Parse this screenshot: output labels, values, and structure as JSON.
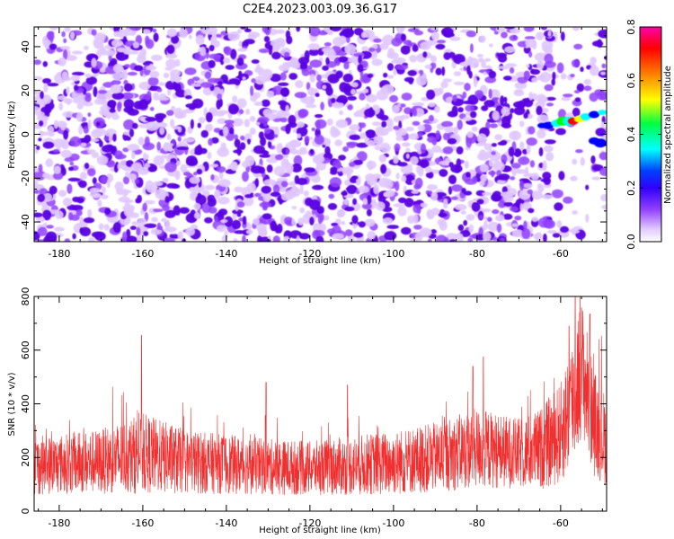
{
  "title": "C2E4.2023.003.09.36.G17",
  "colors": {
    "snr_line": "#f03030",
    "axis": "#000000",
    "colormap": [
      "#ffffff",
      "#e0c8ff",
      "#9040ff",
      "#5a00e0",
      "#0000ff",
      "#00ffff",
      "#00ff00",
      "#ffff00",
      "#ff8000",
      "#ff0000",
      "#ff00aa"
    ]
  },
  "chart_data": [
    {
      "type": "heatmap",
      "xlabel": "Height of straight line (km)",
      "ylabel": "Frequency (Hz)",
      "xlim": [
        -186,
        -49
      ],
      "ylim": [
        -49,
        49
      ],
      "xticks": [
        -180,
        -160,
        -140,
        -120,
        -100,
        -80,
        -60
      ],
      "yticks": [
        -40,
        -20,
        0,
        20,
        40
      ],
      "features": [
        {
          "x_range": [
            -186,
            -62
          ],
          "description_values": "scattered amplitude blobs",
          "typical_amplitude": [
            0.02,
            0.1
          ]
        },
        {
          "x_range": [
            -62,
            -49
          ],
          "y_center": 6,
          "peak_x": -57,
          "peak_amplitude": 0.78
        }
      ],
      "colorbar": {
        "label": "Normalized spectral amplitude",
        "range": [
          0,
          0.8
        ],
        "ticks": [
          0.0,
          0.2,
          0.4,
          0.6,
          0.8
        ]
      }
    },
    {
      "type": "line",
      "xlabel": "Height of straight line (km)",
      "ylabel": "SNR (10 * v/v)",
      "xlim": [
        -186,
        -49
      ],
      "ylim": [
        0,
        800
      ],
      "xticks": [
        -180,
        -160,
        -140,
        -120,
        -100,
        -80,
        -60
      ],
      "yticks": [
        0,
        200,
        400,
        600,
        800
      ],
      "envelope": {
        "x": [
          -186,
          -180,
          -170,
          -160,
          -150,
          -140,
          -130,
          -120,
          -110,
          -100,
          -90,
          -80,
          -70,
          -65,
          -60,
          -57,
          -55,
          -52,
          -49
        ],
        "mean": [
          170,
          175,
          185,
          215,
          185,
          175,
          165,
          160,
          170,
          180,
          200,
          235,
          215,
          230,
          290,
          420,
          540,
          330,
          260
        ],
        "spread": [
          110,
          110,
          120,
          150,
          120,
          110,
          105,
          100,
          110,
          120,
          130,
          150,
          130,
          150,
          190,
          250,
          260,
          200,
          170
        ]
      },
      "peaks": [
        {
          "x": -160.3,
          "y": 655
        },
        {
          "x": -130.5,
          "y": 480
        },
        {
          "x": -111,
          "y": 470
        },
        {
          "x": -78.5,
          "y": 575
        },
        {
          "x": -81,
          "y": 540
        },
        {
          "x": -56.5,
          "y": 800
        },
        {
          "x": -53,
          "y": 735
        },
        {
          "x": -58,
          "y": 690
        }
      ]
    }
  ]
}
